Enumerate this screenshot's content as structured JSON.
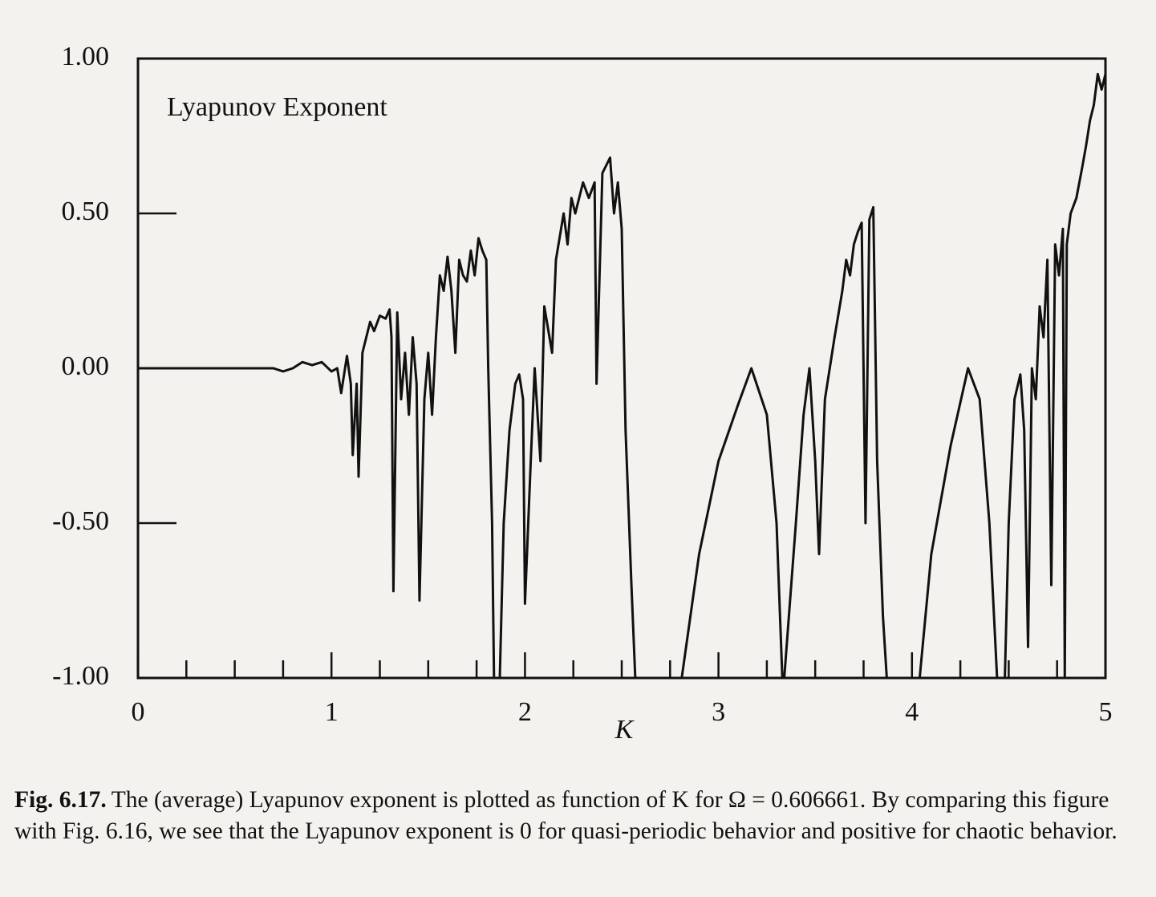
{
  "chart_data": {
    "type": "line",
    "annotation": "Lyapunov Exponent",
    "x_label": "K",
    "color": "#111111",
    "x": [
      0,
      0.5,
      0.7,
      0.75,
      0.8,
      0.85,
      0.9,
      0.95,
      1.0,
      1.03,
      1.05,
      1.08,
      1.1,
      1.11,
      1.13,
      1.14,
      1.16,
      1.18,
      1.2,
      1.22,
      1.25,
      1.28,
      1.3,
      1.31,
      1.32,
      1.34,
      1.36,
      1.38,
      1.4,
      1.42,
      1.44,
      1.455,
      1.48,
      1.5,
      1.52,
      1.54,
      1.56,
      1.58,
      1.6,
      1.62,
      1.64,
      1.66,
      1.68,
      1.7,
      1.72,
      1.74,
      1.76,
      1.78,
      1.8,
      1.81,
      1.83,
      1.84,
      1.855,
      1.87,
      1.89,
      1.92,
      1.95,
      1.97,
      1.99,
      2.0,
      2.03,
      2.05,
      2.08,
      2.1,
      2.14,
      2.16,
      2.2,
      2.22,
      2.24,
      2.26,
      2.3,
      2.33,
      2.36,
      2.37,
      2.4,
      2.44,
      2.46,
      2.48,
      2.5,
      2.52,
      2.55,
      2.57,
      2.7,
      2.81,
      2.9,
      3.0,
      3.1,
      3.17,
      3.25,
      3.3,
      3.33,
      3.335,
      3.34,
      3.4,
      3.44,
      3.47,
      3.5,
      3.52,
      3.55,
      3.6,
      3.64,
      3.66,
      3.68,
      3.7,
      3.72,
      3.74,
      3.76,
      3.78,
      3.8,
      3.82,
      3.85,
      3.87,
      3.95,
      4.04,
      4.1,
      4.2,
      4.29,
      4.35,
      4.4,
      4.44,
      4.46,
      4.48,
      4.5,
      4.53,
      4.56,
      4.58,
      4.6,
      4.62,
      4.64,
      4.66,
      4.68,
      4.7,
      4.72,
      4.74,
      4.76,
      4.78,
      4.79,
      4.8,
      4.82,
      4.85,
      4.88,
      4.9,
      4.92,
      4.94,
      4.96,
      4.98,
      5.0
    ],
    "values": [
      0,
      0,
      0,
      -0.01,
      0,
      0.02,
      0.01,
      0.02,
      -0.01,
      0,
      -0.08,
      0.04,
      -0.05,
      -0.28,
      -0.05,
      -0.35,
      0.05,
      0.1,
      0.15,
      0.12,
      0.17,
      0.16,
      0.19,
      0.1,
      -0.72,
      0.18,
      -0.1,
      0.05,
      -0.15,
      0.1,
      -0.05,
      -0.75,
      -0.1,
      0.05,
      -0.15,
      0.1,
      0.3,
      0.25,
      0.36,
      0.25,
      0.05,
      0.35,
      0.3,
      0.28,
      0.38,
      0.3,
      0.42,
      0.38,
      0.35,
      0,
      -0.5,
      -1,
      null,
      -1,
      -0.5,
      -0.2,
      -0.05,
      -0.02,
      -0.1,
      -0.76,
      -0.3,
      0,
      -0.3,
      0.2,
      0.05,
      0.35,
      0.5,
      0.4,
      0.55,
      0.5,
      0.6,
      0.55,
      0.6,
      -0.05,
      0.63,
      0.68,
      0.5,
      0.6,
      0.45,
      -0.2,
      -0.7,
      -1,
      null,
      -1,
      -0.6,
      -0.3,
      -0.12,
      0,
      -0.15,
      -0.5,
      -1,
      null,
      -1,
      -0.5,
      -0.15,
      0,
      -0.3,
      -0.6,
      -0.1,
      0.1,
      0.25,
      0.35,
      0.3,
      0.4,
      0.44,
      0.47,
      -0.5,
      0.48,
      0.52,
      -0.3,
      -0.8,
      -1,
      null,
      -1,
      -0.6,
      -0.25,
      0,
      -0.1,
      -0.5,
      -1,
      null,
      -1,
      -0.5,
      -0.1,
      -0.02,
      -0.2,
      -0.9,
      0,
      -0.1,
      0.2,
      0.1,
      0.35,
      -0.7,
      0.4,
      0.3,
      0.45,
      -1,
      0.4,
      0.5,
      0.55,
      0.65,
      0.72,
      0.8,
      0.85,
      0.95,
      0.9,
      0.95
    ],
    "xlim": [
      0,
      5
    ],
    "xticks": [
      0,
      1,
      2,
      3,
      4,
      5
    ],
    "ylim": [
      -1,
      1
    ],
    "yticks": [
      {
        "value": -1,
        "label": "-1.00"
      },
      {
        "value": -0.5,
        "label": "-0.50"
      },
      {
        "value": 0,
        "label": "0.00"
      },
      {
        "value": 0.5,
        "label": "0.50"
      },
      {
        "value": 1,
        "label": "1.00"
      }
    ]
  },
  "caption": {
    "label": "Fig. 6.17.",
    "text": "The (average) Lyapunov exponent is plotted as function of K for Ω = 0.606661. By comparing this figure with Fig. 6.16, we see that the Lyapunov exponent is 0 for quasi-periodic behavior and positive for chaotic behavior."
  }
}
